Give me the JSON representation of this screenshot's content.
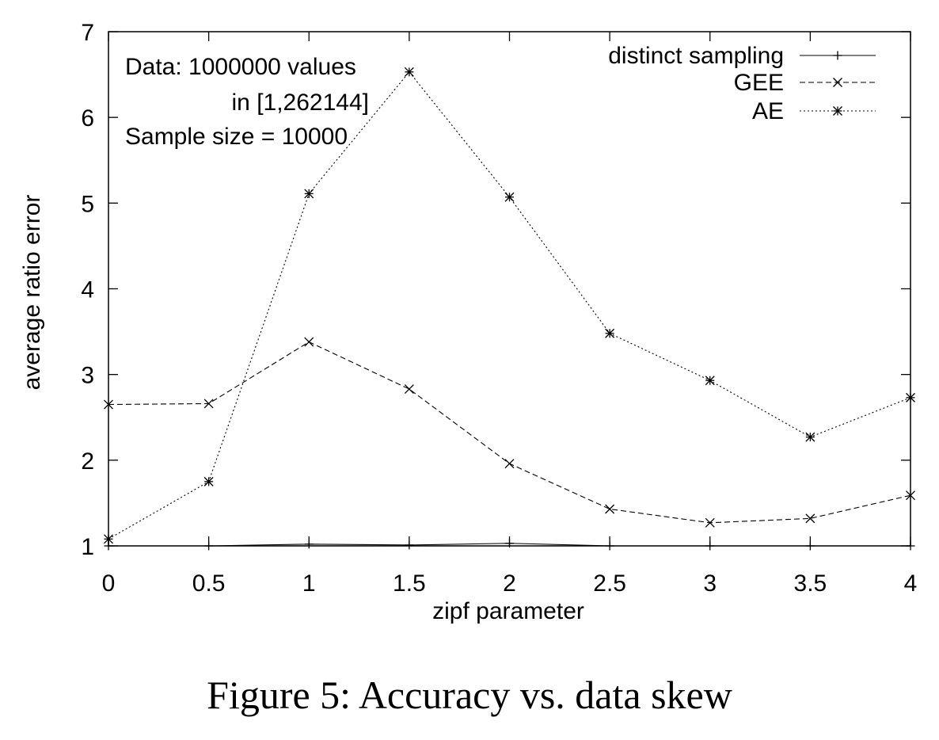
{
  "figure_caption": "Figure 5: Accuracy vs. data skew",
  "annotation": {
    "line1": "Data: 1000000 values",
    "line2": "in [1,262144]",
    "line3": "Sample size = 10000"
  },
  "chart_data": {
    "type": "line",
    "xlabel": "zipf parameter",
    "ylabel": "average ratio error",
    "xlim": [
      0,
      4
    ],
    "ylim": [
      1,
      7
    ],
    "xticks": [
      "0",
      "0.5",
      "1",
      "1.5",
      "2",
      "2.5",
      "3",
      "3.5",
      "4"
    ],
    "yticks": [
      "1",
      "2",
      "3",
      "4",
      "5",
      "6",
      "7"
    ],
    "grid": false,
    "legend_position": "top-right",
    "x": [
      0,
      0.5,
      1,
      1.5,
      2,
      2.5,
      3,
      3.5,
      4
    ],
    "series": [
      {
        "name": "distinct sampling",
        "marker": "plus",
        "dash": "solid",
        "values": [
          1.0,
          1.0,
          1.02,
          1.01,
          1.03,
          1.0,
          1.0,
          1.0,
          1.0
        ]
      },
      {
        "name": "GEE",
        "marker": "x",
        "dash": "dashed",
        "values": [
          2.65,
          2.66,
          3.38,
          2.83,
          1.96,
          1.43,
          1.27,
          1.32,
          1.59
        ]
      },
      {
        "name": "AE",
        "marker": "star",
        "dash": "dotted",
        "values": [
          1.08,
          1.75,
          5.11,
          6.53,
          5.07,
          3.48,
          2.93,
          2.27,
          2.73
        ]
      }
    ]
  }
}
